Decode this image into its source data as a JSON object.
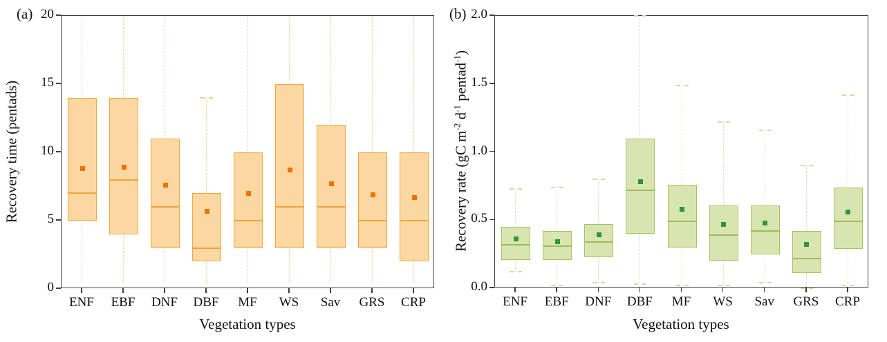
{
  "figure": {
    "background": "#ffffff",
    "frame_color": "#3e3e3e",
    "text_color": "#111111"
  },
  "chart_data": [
    {
      "type": "box",
      "panel_label": "(a)",
      "ylabel": "Recovery time (pentads)",
      "xlabel": "Vegetation types",
      "ylim": [
        0,
        20
      ],
      "ytick_values": [
        0,
        5,
        10,
        15,
        20
      ],
      "ytick_labels": [
        "0",
        "5",
        "10",
        "15",
        "20"
      ],
      "categories": [
        "ENF",
        "EBF",
        "DNF",
        "DBF",
        "MF",
        "WS",
        "Sav",
        "GRS",
        "CRP"
      ],
      "grid": false,
      "whisker_style": "dotted",
      "colors": {
        "box_fill": "#fbd7a2",
        "box_edge": "#f2a73e",
        "median": "#f2a23a",
        "mean": "#ed7200",
        "whisker": "#f7c87f"
      },
      "boxes": [
        {
          "cat": "ENF",
          "lo": 0.4,
          "q1": 5,
          "median": 7,
          "mean": 8.8,
          "q3": 14,
          "hi": 20,
          "lo_cap": false,
          "hi_cap": false
        },
        {
          "cat": "EBF",
          "lo": 0.4,
          "q1": 4,
          "median": 8,
          "mean": 8.9,
          "q3": 14,
          "hi": 20,
          "lo_cap": false,
          "hi_cap": false
        },
        {
          "cat": "DNF",
          "lo": 0.4,
          "q1": 3,
          "median": 6,
          "mean": 7.6,
          "q3": 11,
          "hi": 20,
          "lo_cap": false,
          "hi_cap": false
        },
        {
          "cat": "DBF",
          "lo": 0.3,
          "q1": 2,
          "median": 3,
          "mean": 5.7,
          "q3": 7,
          "hi": 14,
          "lo_cap": false,
          "hi_cap": true
        },
        {
          "cat": "MF",
          "lo": 0.4,
          "q1": 3,
          "median": 5,
          "mean": 7.0,
          "q3": 10,
          "hi": 20,
          "lo_cap": false,
          "hi_cap": false
        },
        {
          "cat": "WS",
          "lo": 0.4,
          "q1": 3,
          "median": 6,
          "mean": 8.7,
          "q3": 15,
          "hi": 20,
          "lo_cap": false,
          "hi_cap": false
        },
        {
          "cat": "Sav",
          "lo": 0.4,
          "q1": 3,
          "median": 6,
          "mean": 7.7,
          "q3": 12,
          "hi": 20,
          "lo_cap": false,
          "hi_cap": false
        },
        {
          "cat": "GRS",
          "lo": 0.4,
          "q1": 3,
          "median": 5,
          "mean": 6.9,
          "q3": 10,
          "hi": 20,
          "lo_cap": false,
          "hi_cap": false
        },
        {
          "cat": "CRP",
          "lo": 0.4,
          "q1": 2,
          "median": 5,
          "mean": 6.7,
          "q3": 10,
          "hi": 20,
          "lo_cap": false,
          "hi_cap": false
        }
      ]
    },
    {
      "type": "box",
      "panel_label": "(b)",
      "ylabel": "Recovery rate (gC m-2 d-1 pentad-1)",
      "ylabel_segments": [
        {
          "text": "Recovery rate (gC m"
        },
        {
          "text": "-2",
          "sup": true
        },
        {
          "text": " d"
        },
        {
          "text": "-1",
          "sup": true
        },
        {
          "text": " pentad"
        },
        {
          "text": "-1",
          "sup": true
        },
        {
          "text": ")"
        }
      ],
      "xlabel": "Vegetation types",
      "ylim": [
        0,
        2
      ],
      "ytick_values": [
        0,
        0.5,
        1,
        1.5,
        2
      ],
      "ytick_labels": [
        "0.0",
        "0.5",
        "1.0",
        "1.5",
        "2.0"
      ],
      "categories": [
        "ENF",
        "EBF",
        "DNF",
        "DBF",
        "MF",
        "WS",
        "Sav",
        "GRS",
        "CRP"
      ],
      "grid": false,
      "whisker_style": "dotted",
      "colors": {
        "box_fill": "#d9e5b1",
        "box_edge": "#a4c35f",
        "median": "#9dbc58",
        "mean": "#2e9634",
        "whisker": "#cddc9b"
      },
      "boxes": [
        {
          "cat": "ENF",
          "lo": 0.12,
          "q1": 0.21,
          "median": 0.32,
          "mean": 0.36,
          "q3": 0.45,
          "hi": 0.73,
          "lo_cap": true,
          "hi_cap": true
        },
        {
          "cat": "EBF",
          "lo": 0.02,
          "q1": 0.21,
          "median": 0.31,
          "mean": 0.34,
          "q3": 0.42,
          "hi": 0.74,
          "lo_cap": true,
          "hi_cap": true
        },
        {
          "cat": "DNF",
          "lo": 0.04,
          "q1": 0.23,
          "median": 0.34,
          "mean": 0.39,
          "q3": 0.47,
          "hi": 0.8,
          "lo_cap": true,
          "hi_cap": true
        },
        {
          "cat": "DBF",
          "lo": 0.03,
          "q1": 0.4,
          "median": 0.72,
          "mean": 0.78,
          "q3": 1.1,
          "hi": 2.0,
          "lo_cap": true,
          "hi_cap": true
        },
        {
          "cat": "MF",
          "lo": 0.02,
          "q1": 0.3,
          "median": 0.49,
          "mean": 0.58,
          "q3": 0.76,
          "hi": 1.49,
          "lo_cap": true,
          "hi_cap": true
        },
        {
          "cat": "WS",
          "lo": 0.02,
          "q1": 0.2,
          "median": 0.39,
          "mean": 0.47,
          "q3": 0.61,
          "hi": 1.22,
          "lo_cap": true,
          "hi_cap": true
        },
        {
          "cat": "Sav",
          "lo": 0.04,
          "q1": 0.25,
          "median": 0.42,
          "mean": 0.48,
          "q3": 0.61,
          "hi": 1.16,
          "lo_cap": true,
          "hi_cap": true
        },
        {
          "cat": "GRS",
          "lo": 0.0,
          "q1": 0.11,
          "median": 0.22,
          "mean": 0.32,
          "q3": 0.42,
          "hi": 0.9,
          "lo_cap": true,
          "hi_cap": true
        },
        {
          "cat": "CRP",
          "lo": 0.02,
          "q1": 0.29,
          "median": 0.49,
          "mean": 0.56,
          "q3": 0.74,
          "hi": 1.42,
          "lo_cap": true,
          "hi_cap": true
        }
      ]
    }
  ]
}
